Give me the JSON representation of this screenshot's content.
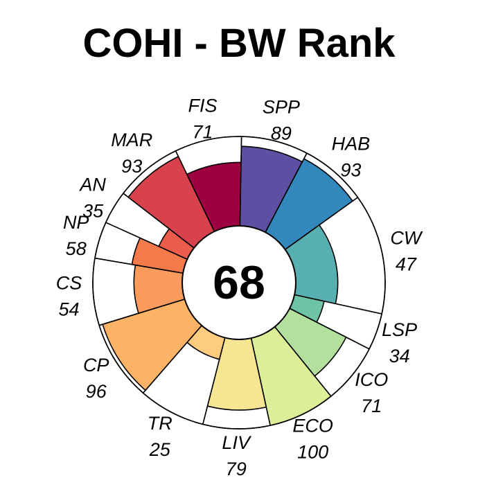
{
  "chart_data": {
    "type": "flower",
    "title": "COHI - BW Rank",
    "center_value": "68",
    "value_max": 100,
    "segments": [
      {
        "label": "CS",
        "value": 54,
        "weight": 1.0,
        "color": "#F99B5D"
      },
      {
        "label": "NP",
        "value": 58,
        "weight": 0.55,
        "color": "#F47A4C"
      },
      {
        "label": "AN",
        "value": 35,
        "weight": 0.5,
        "color": "#EB5C4A"
      },
      {
        "label": "MAR",
        "value": 93,
        "weight": 1.0,
        "color": "#D8424C"
      },
      {
        "label": "FIS",
        "value": 71,
        "weight": 1.0,
        "color": "#9E0142"
      },
      {
        "label": "SPP",
        "value": 89,
        "weight": 1.0,
        "color": "#5E4FA2"
      },
      {
        "label": "HAB",
        "value": 93,
        "weight": 1.0,
        "color": "#3288BD"
      },
      {
        "label": "CW",
        "value": 47,
        "weight": 1.8,
        "color": "#58AFB1"
      },
      {
        "label": "LSP",
        "value": 34,
        "weight": 0.55,
        "color": "#6CC3A6"
      },
      {
        "label": "ICO",
        "value": 71,
        "weight": 0.9,
        "color": "#B4E09D"
      },
      {
        "label": "ECO",
        "value": 100,
        "weight": 1.0,
        "color": "#DCEF98"
      },
      {
        "label": "LIV",
        "value": 79,
        "weight": 1.0,
        "color": "#F6E592"
      },
      {
        "label": "TR",
        "value": 25,
        "weight": 1.0,
        "color": "#FDCC7E"
      },
      {
        "label": "CP",
        "value": 96,
        "weight": 1.2,
        "color": "#FDB366"
      }
    ]
  }
}
